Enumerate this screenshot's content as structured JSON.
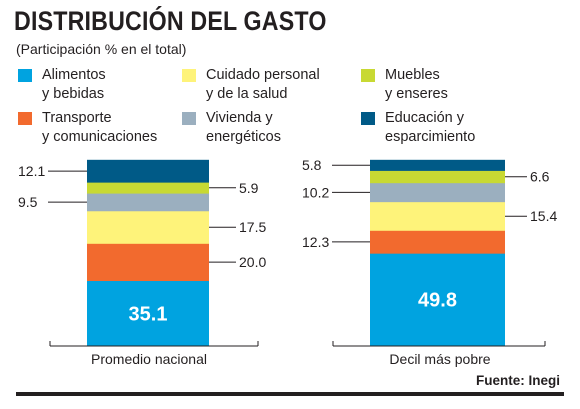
{
  "header": {
    "title": "DISTRIBUCIÓN DEL GASTO",
    "subtitle": "(Participación % en el total)"
  },
  "legend": [
    {
      "label": "Alimentos\ny bebidas",
      "color": "#00a3e0"
    },
    {
      "label": "Cuidado personal\ny de la salud",
      "color": "#fef37a"
    },
    {
      "label": "Muebles\ny enseres",
      "color": "#c8d933"
    },
    {
      "label": "Transporte\ny comunicaciones",
      "color": "#f26a2e"
    },
    {
      "label": "Vivienda y\nenergéticos",
      "color": "#9bafbf"
    },
    {
      "label": "Educación y\nesparcimiento",
      "color": "#005a87"
    }
  ],
  "source": "Fuente: Inegi",
  "chart_data": {
    "type": "bar",
    "stacked": true,
    "categories": [
      "Promedio nacional",
      "Decil más pobre"
    ],
    "series": [
      {
        "name": "Alimentos y bebidas",
        "color": "#00a3e0",
        "values": [
          35.1,
          49.8
        ]
      },
      {
        "name": "Transporte y comunicaciones",
        "color": "#f26a2e",
        "values": [
          20.0,
          12.3
        ]
      },
      {
        "name": "Cuidado personal y de la salud",
        "color": "#fef37a",
        "values": [
          17.5,
          15.4
        ]
      },
      {
        "name": "Vivienda y energéticos",
        "color": "#9bafbf",
        "values": [
          9.5,
          10.2
        ]
      },
      {
        "name": "Muebles y enseres",
        "color": "#c8d933",
        "values": [
          5.9,
          6.6
        ]
      },
      {
        "name": "Educación y esparcimiento",
        "color": "#005a87",
        "values": [
          12.1,
          5.8
        ]
      }
    ],
    "callouts": [
      [
        {
          "label": "12.1",
          "series": 5,
          "side": "left"
        },
        {
          "label": "9.5",
          "series": 3,
          "side": "left"
        },
        {
          "label": "5.9",
          "series": 4,
          "side": "right"
        },
        {
          "label": "17.5",
          "series": 2,
          "side": "right"
        },
        {
          "label": "20.0",
          "series": 1,
          "side": "right"
        }
      ],
      [
        {
          "label": "5.8",
          "series": 5,
          "side": "left"
        },
        {
          "label": "10.2",
          "series": 3,
          "side": "left"
        },
        {
          "label": "12.3",
          "series": 1,
          "side": "left"
        },
        {
          "label": "6.6",
          "series": 4,
          "side": "right"
        },
        {
          "label": "15.4",
          "series": 2,
          "side": "right"
        }
      ]
    ],
    "inside_labels": [
      "35.1",
      "49.8"
    ],
    "ylim": [
      0,
      100
    ]
  }
}
